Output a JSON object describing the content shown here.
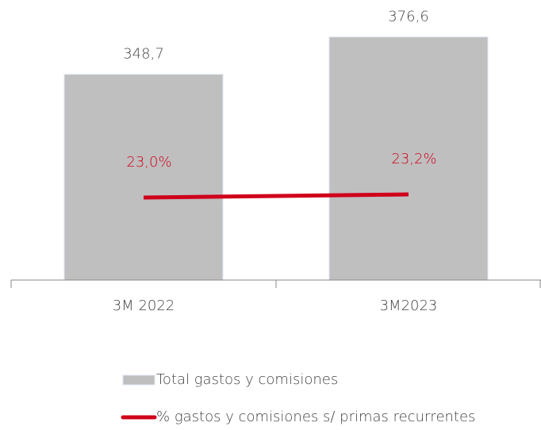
{
  "chart_data": {
    "type": "bar-line",
    "categories": [
      "3M 2022",
      "3M2023"
    ],
    "series": [
      {
        "name": "Total gastos y comisiones",
        "type": "bar",
        "color": "#bfbfbf",
        "values": [
          348.7,
          376.6
        ],
        "value_labels": [
          "348,7",
          "376,6"
        ]
      },
      {
        "name": "% gastos y comisiones s/ primas recurrentes",
        "type": "line",
        "color": "#d0021b",
        "axis": "y2",
        "values": [
          23.0,
          23.2
        ],
        "value_labels": [
          "23,0%",
          "23,2%"
        ]
      }
    ],
    "ylim": [
      195,
      390
    ],
    "y2lim": [
      17.8,
      34.25
    ]
  }
}
